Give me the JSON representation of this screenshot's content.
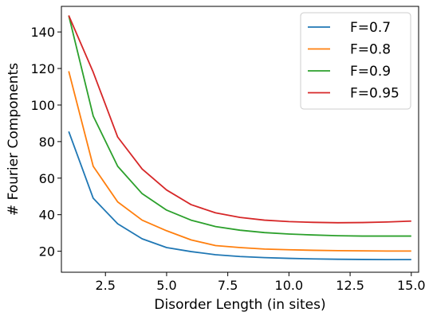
{
  "chart_data": {
    "type": "line",
    "xlabel": "Disorder Length (in sites)",
    "ylabel": "# Fourier Components",
    "xlim": [
      0.7,
      15.3
    ],
    "ylim": [
      8.5,
      154
    ],
    "xticks": [
      2.5,
      5.0,
      7.5,
      10.0,
      12.5,
      15.0
    ],
    "xtick_labels": [
      "2.5",
      "5.0",
      "7.5",
      "10.0",
      "12.5",
      "15.0"
    ],
    "yticks": [
      20,
      40,
      60,
      80,
      100,
      120,
      140
    ],
    "ytick_labels": [
      "20",
      "40",
      "60",
      "80",
      "100",
      "120",
      "140"
    ],
    "grid": false,
    "legend_position": "top-right",
    "x": [
      1,
      2,
      3,
      4,
      5,
      6,
      7,
      8,
      9,
      10,
      11,
      12,
      13,
      14,
      15
    ],
    "series": [
      {
        "name": "F=0.7",
        "color": "#1f77b4",
        "values": [
          85.5,
          49,
          35,
          26.8,
          22,
          19.8,
          18.1,
          17.1,
          16.5,
          16.1,
          15.8,
          15.6,
          15.5,
          15.4,
          15.4
        ]
      },
      {
        "name": "F=0.8",
        "color": "#ff7f0e",
        "values": [
          118.5,
          66.5,
          47,
          37,
          31.2,
          26.2,
          23.1,
          22,
          21.2,
          20.8,
          20.5,
          20.3,
          20.2,
          20.1,
          20.1
        ]
      },
      {
        "name": "F=0.9",
        "color": "#2ca02c",
        "values": [
          149,
          94,
          66.5,
          51.5,
          42.5,
          37,
          33.5,
          31.5,
          30.2,
          29.4,
          28.9,
          28.5,
          28.3,
          28.3,
          28.3
        ]
      },
      {
        "name": "F=0.95",
        "color": "#d62728",
        "values": [
          149,
          118,
          82.5,
          65,
          53.5,
          45.5,
          41,
          38.5,
          37,
          36.2,
          35.8,
          35.6,
          35.7,
          36,
          36.5
        ]
      }
    ]
  }
}
